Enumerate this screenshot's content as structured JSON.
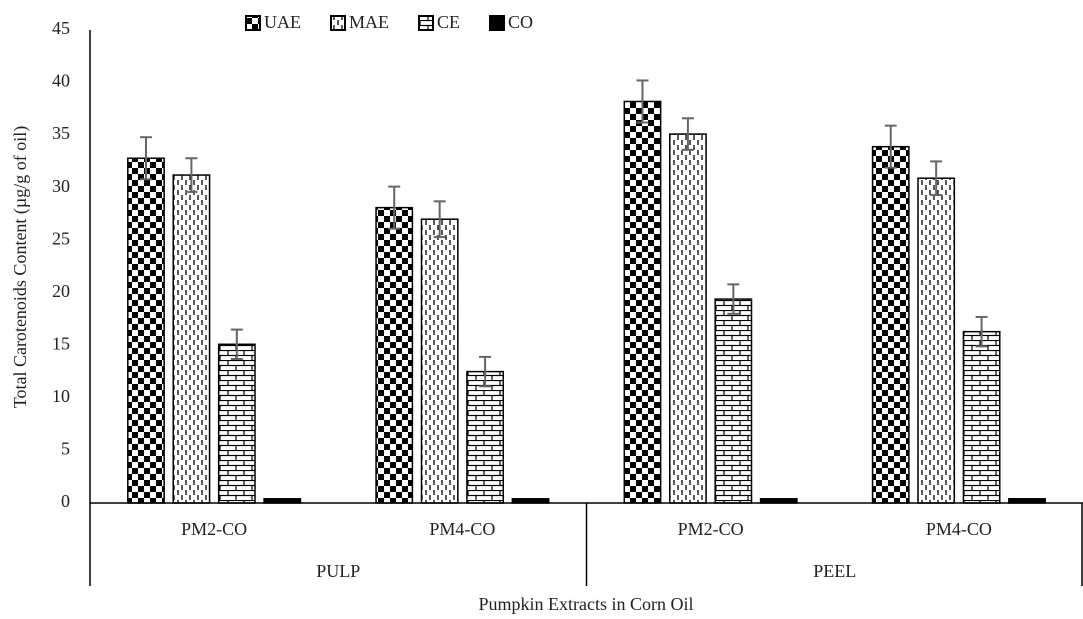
{
  "chart_data": {
    "type": "bar",
    "y_label": "Total Carotenoids Content (µg/g of oil)",
    "x_label": "Pumpkin Extracts in Corn Oil",
    "categories": [
      "PM2-CO",
      "PM4-CO",
      "PM2-CO",
      "PM4-CO"
    ],
    "group_labels": [
      "PULP",
      "PEEL"
    ],
    "series": [
      {
        "name": "UAE",
        "color": "#000000",
        "pattern": "checker",
        "values": [
          32.8,
          28.1,
          38.2,
          33.9
        ],
        "errors": [
          2.0,
          2.0,
          2.0,
          2.0
        ]
      },
      {
        "name": "MAE",
        "color": "#000000",
        "pattern": "dashes",
        "values": [
          31.2,
          27.0,
          35.1,
          30.9
        ],
        "errors": [
          1.6,
          1.7,
          1.5,
          1.6
        ]
      },
      {
        "name": "CE",
        "color": "#000000",
        "pattern": "brick",
        "values": [
          15.1,
          12.5,
          19.4,
          16.3
        ],
        "errors": [
          1.4,
          1.4,
          1.4,
          1.4
        ]
      },
      {
        "name": "CO",
        "color": "#000000",
        "pattern": "solid",
        "values": [
          0.4,
          0.4,
          0.4,
          0.4
        ],
        "errors": [
          null,
          null,
          null,
          null
        ]
      }
    ],
    "ylim": [
      0,
      45
    ],
    "yticks": [
      0,
      5,
      10,
      15,
      20,
      25,
      30,
      35,
      40,
      45
    ],
    "grid": false,
    "legend": "top"
  }
}
